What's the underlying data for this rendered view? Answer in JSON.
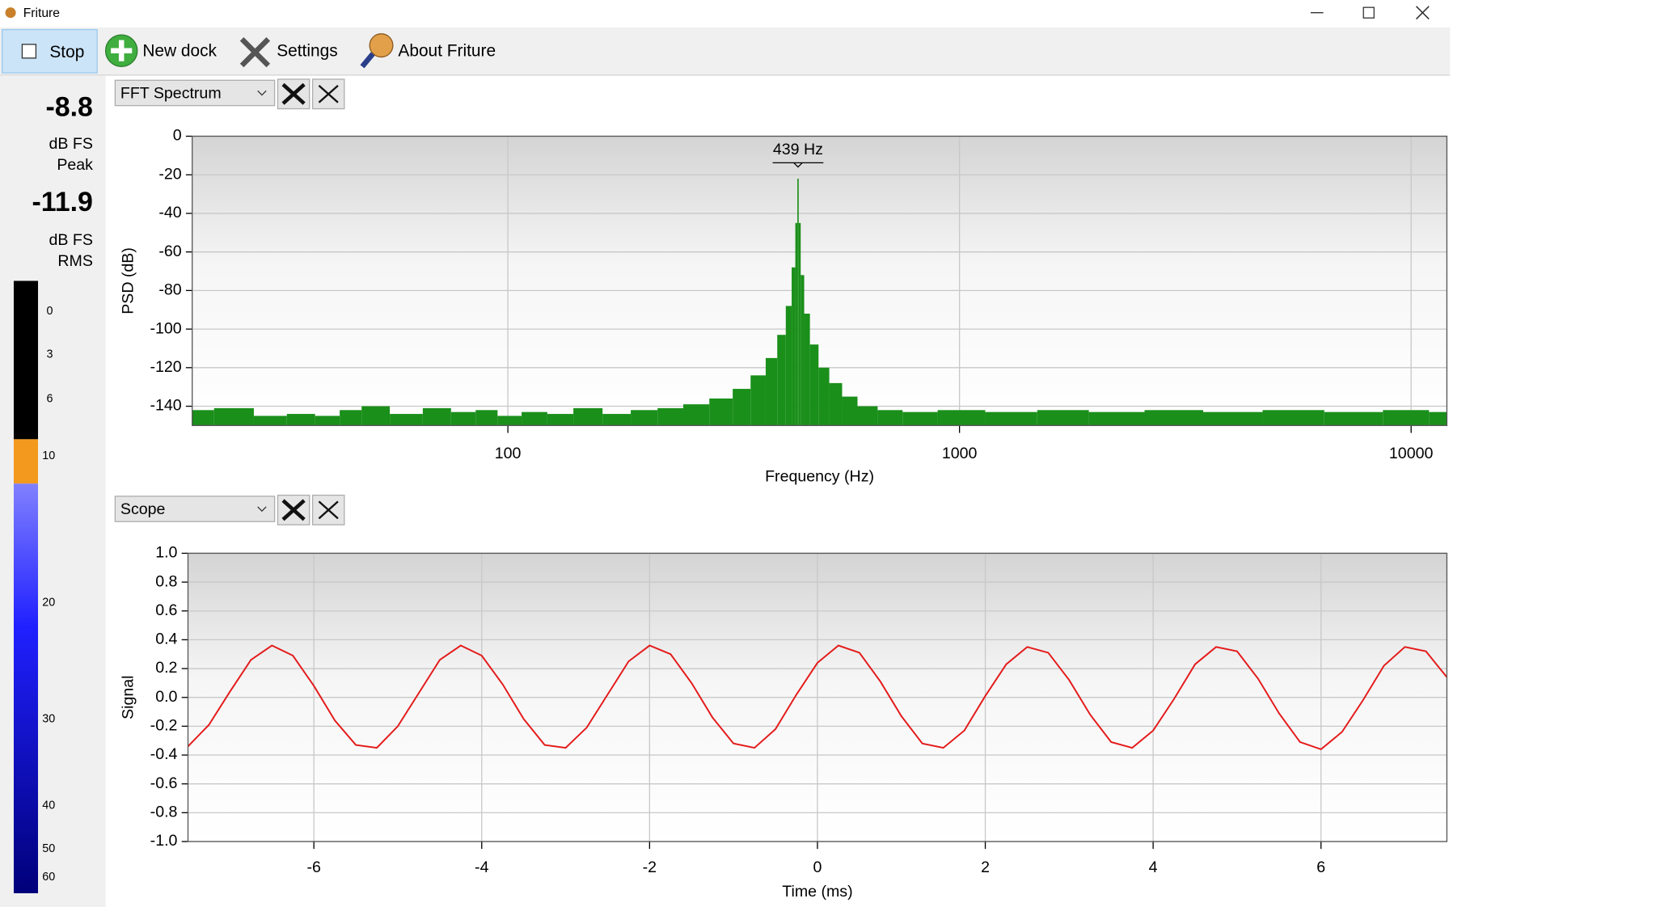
{
  "window": {
    "title": "Friture"
  },
  "toolbar": {
    "buttons": [
      "Stop",
      "New dock",
      "Settings",
      "About Friture"
    ]
  },
  "levels": {
    "peak": {
      "value": -8.8,
      "unit": "dB FS",
      "label": "Peak"
    },
    "rms": {
      "value": -11.9,
      "unit": "dB FS",
      "label": "RMS"
    },
    "scale": [
      0,
      3,
      6,
      10,
      20,
      30,
      40,
      50,
      60
    ]
  },
  "docks": [
    {
      "selector": "FFT Spectrum",
      "chart_data": {
        "type": "bar",
        "xlabel": "Frequency (Hz)",
        "ylabel": "PSD (dB)",
        "annotation": "439 Hz",
        "log_x": true,
        "grid": true,
        "color": "#1a8f1a",
        "xlim": [
          20,
          12000
        ],
        "ylim": [
          -150,
          0
        ],
        "xticks": [
          100,
          1000,
          10000
        ],
        "yticks": [
          0,
          -20,
          -40,
          -60,
          -80,
          -100,
          -120,
          -140
        ],
        "x": [
          20,
          25,
          30,
          35,
          40,
          45,
          50,
          60,
          70,
          80,
          90,
          100,
          115,
          130,
          150,
          175,
          200,
          230,
          260,
          300,
          330,
          360,
          385,
          405,
          420,
          430,
          436,
          439,
          442,
          448,
          458,
          475,
          500,
          530,
          570,
          620,
          700,
          800,
          1000,
          1300,
          1700,
          2200,
          3000,
          4000,
          5500,
          7500,
          10000,
          12000
        ],
        "values": [
          -142,
          -141,
          -145,
          -144,
          -145,
          -142,
          -140,
          -144,
          -141,
          -143,
          -142,
          -145,
          -143,
          -144,
          -141,
          -144,
          -142,
          -141,
          -139,
          -136,
          -131,
          -124,
          -115,
          -103,
          -88,
          -68,
          -45,
          -22,
          -45,
          -72,
          -92,
          -108,
          -120,
          -128,
          -135,
          -140,
          -142,
          -143,
          -142,
          -143,
          -142,
          -143,
          -142,
          -143,
          -142,
          -143,
          -142,
          -143
        ]
      }
    },
    {
      "selector": "Scope",
      "chart_data": {
        "type": "line",
        "xlabel": "Time (ms)",
        "ylabel": "Signal",
        "grid": true,
        "color": "#e41a1a",
        "xlim": [
          -7.5,
          7.5
        ],
        "ylim": [
          -1,
          1
        ],
        "xticks": [
          -6,
          -4,
          -2,
          0,
          2,
          4,
          6
        ],
        "yticks": [
          {
            "value": 1,
            "label": "1.0"
          },
          0.8,
          0.6,
          0.4,
          0.2,
          {
            "value": 0,
            "label": "0.0"
          },
          -0.2,
          -0.4,
          -0.6,
          -0.8,
          {
            "value": -1,
            "label": "-1.0"
          }
        ],
        "x": [
          -7.5,
          -7.25,
          -7,
          -6.75,
          -6.5,
          -6.25,
          -6,
          -5.75,
          -5.5,
          -5.25,
          -5,
          -4.75,
          -4.5,
          -4.25,
          -4,
          -3.75,
          -3.5,
          -3.25,
          -3,
          -2.75,
          -2.5,
          -2.25,
          -2,
          -1.75,
          -1.5,
          -1.25,
          -1,
          -0.75,
          -0.5,
          -0.25,
          0,
          0.25,
          0.5,
          0.75,
          1,
          1.25,
          1.5,
          1.75,
          2,
          2.25,
          2.5,
          2.75,
          3,
          3.25,
          3.5,
          3.75,
          4,
          4.25,
          4.5,
          4.75,
          5,
          5.25,
          5.5,
          5.75,
          6,
          6.25,
          6.5,
          6.75,
          7,
          7.25,
          7.5
        ],
        "values": [
          -0.34,
          -0.19,
          0.04,
          0.26,
          0.36,
          0.29,
          0.08,
          -0.16,
          -0.33,
          -0.35,
          -0.2,
          0.03,
          0.26,
          0.36,
          0.29,
          0.09,
          -0.15,
          -0.33,
          -0.35,
          -0.21,
          0.02,
          0.25,
          0.36,
          0.3,
          0.1,
          -0.14,
          -0.32,
          -0.35,
          -0.22,
          0.02,
          0.24,
          0.36,
          0.31,
          0.11,
          -0.13,
          -0.32,
          -0.35,
          -0.23,
          0.01,
          0.23,
          0.35,
          0.31,
          0.12,
          -0.12,
          -0.31,
          -0.35,
          -0.23,
          -0.01,
          0.23,
          0.35,
          0.32,
          0.13,
          -0.11,
          -0.31,
          -0.36,
          -0.24,
          -0.02,
          0.22,
          0.35,
          0.32,
          0.14
        ]
      }
    }
  ]
}
